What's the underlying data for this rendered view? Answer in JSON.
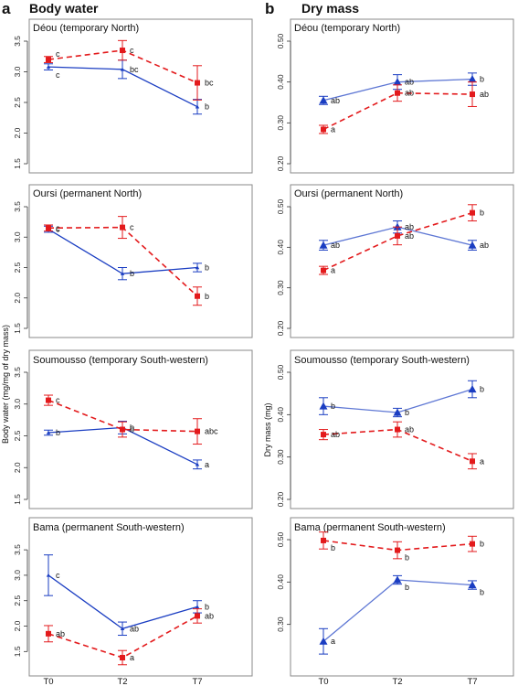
{
  "columns": [
    {
      "letter": "a",
      "title": "Body water"
    },
    {
      "letter": "b",
      "title": "Dry mass"
    }
  ],
  "x_ticks": [
    "T0",
    "T2",
    "T7"
  ],
  "y_axis_labels": [
    "Body water (mg/mg of dry mass)",
    "Dry mass (mg)"
  ],
  "colors": {
    "blue": "#1a3dc2",
    "red": "#e31a1c"
  },
  "chart_data": [
    {
      "type": "line",
      "panel": "a",
      "title": "Déou (temporary North)",
      "categories": [
        "T0",
        "T2",
        "T7"
      ],
      "ylim": [
        1.5,
        3.5
      ],
      "yticks": [
        "1.5",
        "2.0",
        "2.5",
        "3.0",
        "3.5"
      ],
      "series": [
        {
          "color": "blue",
          "line": "solid",
          "marker": "triangle",
          "values": [
            3.08,
            3.04,
            2.43
          ],
          "err": [
            0.05,
            0.15,
            0.12
          ],
          "labels": [
            "c",
            "bc",
            "b"
          ],
          "label_dy": [
            9,
            0,
            0
          ]
        },
        {
          "color": "red",
          "line": "dashed",
          "marker": "square",
          "values": [
            3.2,
            3.35,
            2.82
          ],
          "err": [
            0.05,
            0.16,
            0.28
          ],
          "labels": [
            "c",
            "c",
            "bc"
          ],
          "label_dy": [
            -6,
            0,
            0
          ]
        }
      ]
    },
    {
      "type": "line",
      "panel": "a",
      "title": "Oursi (permanent North)",
      "categories": [
        "T0",
        "T2",
        "T7"
      ],
      "ylim": [
        1.5,
        3.5
      ],
      "yticks": [
        "1.5",
        "2.0",
        "2.5",
        "3.0",
        "3.5"
      ],
      "series": [
        {
          "color": "blue",
          "line": "solid",
          "marker": "triangle",
          "values": [
            3.13,
            2.4,
            2.5
          ],
          "err": [
            0.05,
            0.1,
            0.07
          ],
          "labels": [
            "c",
            "b",
            "b"
          ],
          "label_dy": [
            0,
            0,
            0
          ]
        },
        {
          "color": "red",
          "line": "dashed",
          "marker": "square",
          "values": [
            3.15,
            3.16,
            2.03
          ],
          "err": [
            0.05,
            0.18,
            0.15
          ],
          "labels": [
            "c",
            "c",
            "b"
          ],
          "label_dy": [
            0,
            0,
            0
          ]
        }
      ]
    },
    {
      "type": "line",
      "panel": "a",
      "title": "Soumousso (temporary South-western)",
      "categories": [
        "T0",
        "T2",
        "T7"
      ],
      "ylim": [
        1.5,
        3.5
      ],
      "yticks": [
        "1.5",
        "2.0",
        "2.5",
        "3.0",
        "3.5"
      ],
      "series": [
        {
          "color": "blue",
          "line": "solid",
          "marker": "triangle",
          "values": [
            2.55,
            2.63,
            2.05
          ],
          "err": [
            0.04,
            0.1,
            0.07
          ],
          "labels": [
            "b",
            "b",
            "a"
          ],
          "label_dy": [
            0,
            0,
            0
          ]
        },
        {
          "color": "red",
          "line": "dashed",
          "marker": "square",
          "values": [
            3.06,
            2.6,
            2.57
          ],
          "err": [
            0.08,
            0.12,
            0.2
          ],
          "labels": [
            "c",
            "b",
            "abc"
          ],
          "label_dy": [
            0,
            0,
            0
          ]
        }
      ]
    },
    {
      "type": "line",
      "panel": "a",
      "title": "Bama (permanent South-western)",
      "categories": [
        "T0",
        "T2",
        "T7"
      ],
      "ylim": [
        1.2,
        3.7
      ],
      "yticks": [
        "1.5",
        "2.0",
        "2.5",
        "3.0",
        "3.5"
      ],
      "series": [
        {
          "color": "blue",
          "line": "solid",
          "marker": "triangle",
          "values": [
            3.0,
            1.95,
            2.38
          ],
          "err": [
            0.4,
            0.13,
            0.12
          ],
          "labels": [
            "c",
            "ab",
            "b"
          ],
          "label_dy": [
            0,
            0,
            0
          ]
        },
        {
          "color": "red",
          "line": "dashed",
          "marker": "square",
          "values": [
            1.85,
            1.38,
            2.2
          ],
          "err": [
            0.16,
            0.14,
            0.14
          ],
          "labels": [
            "ab",
            "a",
            "ab"
          ],
          "label_dy": [
            0,
            0,
            0
          ]
        }
      ]
    },
    {
      "type": "line",
      "panel": "b",
      "title": "Déou (temporary North)",
      "categories": [
        "T0",
        "T2",
        "T7"
      ],
      "ylim": [
        0.2,
        0.5
      ],
      "yticks": [
        "0.20",
        "0.30",
        "0.40",
        "0.50"
      ],
      "series": [
        {
          "color": "blue",
          "line": "solid",
          "marker": "triangle",
          "values": [
            0.355,
            0.4,
            0.407
          ],
          "err": [
            0.01,
            0.018,
            0.015
          ],
          "labels": [
            "ab",
            "ab",
            "b"
          ],
          "label_dy": [
            0,
            0,
            0
          ]
        },
        {
          "color": "red",
          "line": "dashed",
          "marker": "square",
          "values": [
            0.284,
            0.373,
            0.37
          ],
          "err": [
            0.01,
            0.02,
            0.03
          ],
          "labels": [
            "a",
            "ab",
            "ab"
          ],
          "label_dy": [
            0,
            0,
            0
          ]
        }
      ]
    },
    {
      "type": "line",
      "panel": "b",
      "title": "Oursi (permanent North)",
      "categories": [
        "T0",
        "T2",
        "T7"
      ],
      "ylim": [
        0.2,
        0.5
      ],
      "yticks": [
        "0.20",
        "0.30",
        "0.40",
        "0.50"
      ],
      "series": [
        {
          "color": "blue",
          "line": "solid",
          "marker": "triangle",
          "values": [
            0.405,
            0.45,
            0.405
          ],
          "err": [
            0.012,
            0.015,
            0.012
          ],
          "labels": [
            "ab",
            "ab",
            "ab"
          ],
          "label_dy": [
            0,
            0,
            0
          ]
        },
        {
          "color": "red",
          "line": "dashed",
          "marker": "square",
          "values": [
            0.343,
            0.428,
            0.485
          ],
          "err": [
            0.01,
            0.022,
            0.02
          ],
          "labels": [
            "a",
            "ab",
            "b"
          ],
          "label_dy": [
            0,
            0,
            0
          ]
        }
      ]
    },
    {
      "type": "line",
      "panel": "b",
      "title": "Soumousso (temporary South-western)",
      "categories": [
        "T0",
        "T2",
        "T7"
      ],
      "ylim": [
        0.2,
        0.5
      ],
      "yticks": [
        "0.20",
        "0.30",
        "0.40",
        "0.50"
      ],
      "series": [
        {
          "color": "blue",
          "line": "solid",
          "marker": "triangle",
          "values": [
            0.42,
            0.405,
            0.46
          ],
          "err": [
            0.02,
            0.01,
            0.02
          ],
          "labels": [
            "b",
            "b",
            "b"
          ],
          "label_dy": [
            0,
            0,
            0
          ]
        },
        {
          "color": "red",
          "line": "dashed",
          "marker": "square",
          "values": [
            0.353,
            0.365,
            0.29
          ],
          "err": [
            0.012,
            0.018,
            0.018
          ],
          "labels": [
            "ab",
            "ab",
            "a"
          ],
          "label_dy": [
            0,
            0,
            0
          ]
        }
      ]
    },
    {
      "type": "line",
      "panel": "b",
      "title": "Bama (permanent South-western)",
      "categories": [
        "T0",
        "T2",
        "T7"
      ],
      "ylim": [
        0.2,
        0.5
      ],
      "yticks": [
        "0.30",
        "0.40",
        "0.50"
      ],
      "series": [
        {
          "color": "blue",
          "line": "solid",
          "marker": "triangle",
          "values": [
            0.26,
            0.405,
            0.393
          ],
          "err": [
            0.03,
            0.01,
            0.01
          ],
          "labels": [
            "a",
            "b",
            "b"
          ],
          "label_dy": [
            0,
            8,
            8
          ]
        },
        {
          "color": "red",
          "line": "dashed",
          "marker": "square",
          "values": [
            0.498,
            0.475,
            0.49
          ],
          "err": [
            0.02,
            0.02,
            0.018
          ],
          "labels": [
            "b",
            "b",
            "b"
          ],
          "label_dy": [
            8,
            8,
            0
          ]
        }
      ]
    }
  ]
}
